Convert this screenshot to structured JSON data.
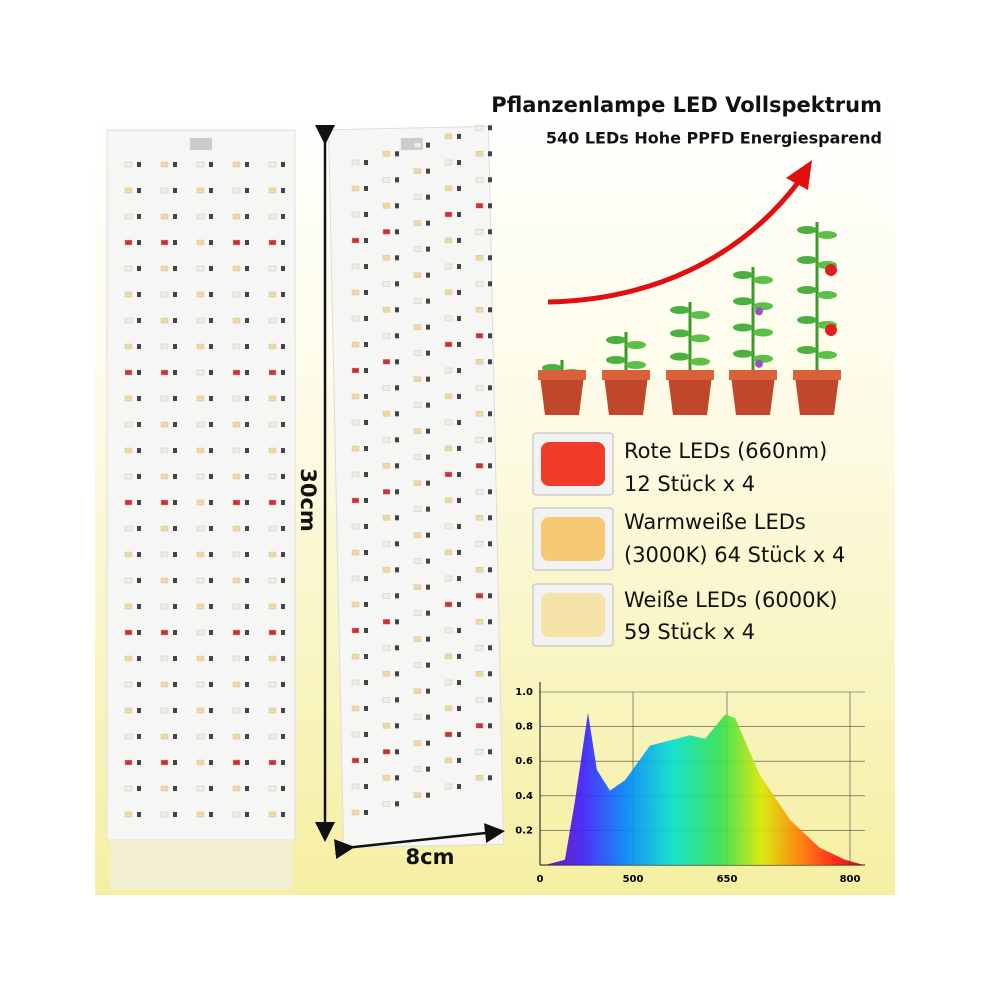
{
  "header": {
    "title": "Pflanzenlampe LED Vollspektrum",
    "subtitle": "540 LEDs Hohe PPFD Energiesparend"
  },
  "dimensions": {
    "length": "30cm",
    "width": "8cm"
  },
  "leds": [
    {
      "line1": "Rote LEDs (660nm)",
      "line2": "12 Stück x 4",
      "color": "#f03a2a"
    },
    {
      "line1": "Warmweiße LEDs",
      "line2": "(3000K) 64 Stück x 4",
      "color": "#f7c974"
    },
    {
      "line1": "Weiße LEDs (6000K)",
      "line2": "59 Stück x 4",
      "color": "#f6e3a8"
    }
  ],
  "spectrum": {
    "type": "area",
    "x": [
      27,
      134,
      188,
      258,
      306,
      376,
      457,
      527,
      591,
      615,
      647,
      660,
      690,
      727,
      763,
      794,
      817
    ],
    "values": [
      0,
      0.03,
      0.37,
      0.88,
      0.55,
      0.43,
      0.49,
      0.69,
      0.75,
      0.73,
      0.87,
      0.85,
      0.52,
      0.26,
      0.1,
      0.03,
      0
    ],
    "xticks": [
      0,
      500,
      650,
      800
    ],
    "yticks": [
      0.2,
      0.4,
      0.6,
      0.8,
      {
        "value": 1,
        "label": "1.0"
      }
    ],
    "ylim": [
      0,
      1
    ],
    "grid": true
  }
}
